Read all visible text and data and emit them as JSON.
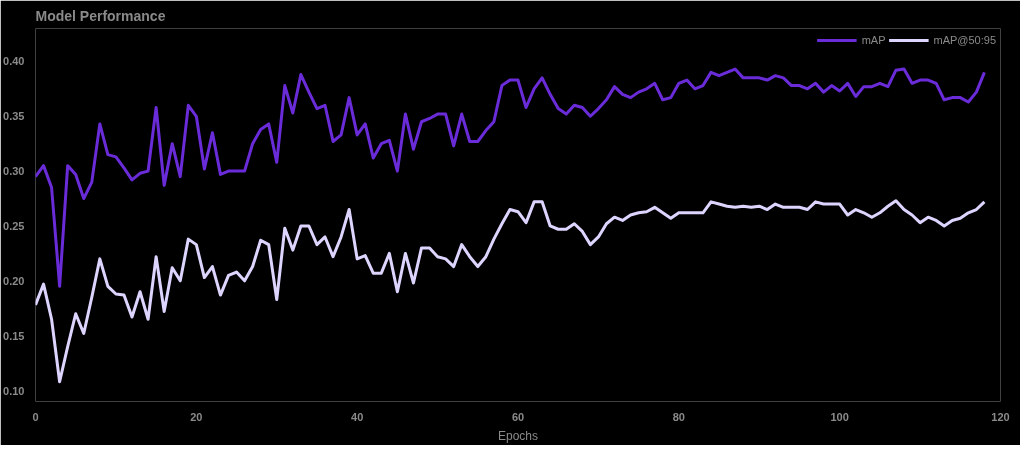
{
  "chart_data": {
    "type": "line",
    "title": "Model Performance",
    "xlabel": "Epochs",
    "x": [
      0,
      1,
      2,
      3,
      4,
      5,
      6,
      7,
      8,
      9,
      10,
      11,
      12,
      13,
      14,
      15,
      16,
      17,
      18,
      19,
      20,
      21,
      22,
      23,
      24,
      25,
      26,
      27,
      28,
      29,
      30,
      31,
      32,
      33,
      34,
      35,
      36,
      37,
      38,
      39,
      40,
      41,
      42,
      43,
      44,
      45,
      46,
      47,
      48,
      49,
      50,
      51,
      52,
      53,
      54,
      55,
      56,
      57,
      58,
      59,
      60,
      61,
      62,
      63,
      64,
      65,
      66,
      67,
      68,
      69,
      70,
      71,
      72,
      73,
      74,
      75,
      76,
      77,
      78,
      79,
      80,
      81,
      82,
      83,
      84,
      85,
      86,
      87,
      88,
      89,
      90,
      91,
      92,
      93,
      94,
      95,
      96,
      97,
      98,
      99,
      100,
      101,
      102,
      103,
      104,
      105,
      106,
      107,
      108,
      109,
      110,
      111,
      112,
      113,
      114,
      115,
      116,
      117,
      118
    ],
    "series": [
      {
        "name": "mAP",
        "color": "#6a2bd9",
        "values": [
          0.295,
          0.305,
          0.285,
          0.195,
          0.305,
          0.297,
          0.275,
          0.29,
          0.343,
          0.315,
          0.313,
          0.303,
          0.292,
          0.298,
          0.3,
          0.358,
          0.287,
          0.325,
          0.295,
          0.36,
          0.35,
          0.302,
          0.335,
          0.297,
          0.3,
          0.3,
          0.3,
          0.325,
          0.338,
          0.343,
          0.308,
          0.378,
          0.353,
          0.388,
          0.372,
          0.357,
          0.36,
          0.327,
          0.333,
          0.367,
          0.333,
          0.343,
          0.312,
          0.325,
          0.328,
          0.3,
          0.352,
          0.32,
          0.345,
          0.348,
          0.352,
          0.352,
          0.323,
          0.352,
          0.327,
          0.327,
          0.337,
          0.345,
          0.378,
          0.383,
          0.383,
          0.358,
          0.375,
          0.385,
          0.37,
          0.357,
          0.352,
          0.36,
          0.358,
          0.35,
          0.357,
          0.365,
          0.377,
          0.37,
          0.367,
          0.372,
          0.375,
          0.38,
          0.365,
          0.367,
          0.38,
          0.383,
          0.375,
          0.378,
          0.39,
          0.387,
          0.39,
          0.393,
          0.385,
          0.385,
          0.385,
          0.383,
          0.387,
          0.385,
          0.378,
          0.378,
          0.375,
          0.38,
          0.372,
          0.378,
          0.373,
          0.38,
          0.368,
          0.377,
          0.377,
          0.38,
          0.377,
          0.392,
          0.393,
          0.38,
          0.383,
          0.383,
          0.38,
          0.365,
          0.367,
          0.367,
          0.363,
          0.372,
          0.39
        ]
      },
      {
        "name": "mAP@50:95",
        "color": "#ddd5ff",
        "values": [
          0.178,
          0.197,
          0.165,
          0.108,
          0.14,
          0.17,
          0.152,
          0.185,
          0.22,
          0.195,
          0.188,
          0.187,
          0.167,
          0.19,
          0.165,
          0.222,
          0.172,
          0.212,
          0.2,
          0.238,
          0.233,
          0.203,
          0.213,
          0.187,
          0.205,
          0.208,
          0.2,
          0.213,
          0.237,
          0.233,
          0.183,
          0.248,
          0.228,
          0.25,
          0.25,
          0.233,
          0.24,
          0.222,
          0.24,
          0.265,
          0.22,
          0.223,
          0.207,
          0.207,
          0.225,
          0.19,
          0.225,
          0.198,
          0.23,
          0.23,
          0.222,
          0.22,
          0.213,
          0.233,
          0.222,
          0.213,
          0.222,
          0.238,
          0.252,
          0.265,
          0.263,
          0.253,
          0.272,
          0.272,
          0.25,
          0.247,
          0.247,
          0.252,
          0.245,
          0.233,
          0.24,
          0.252,
          0.258,
          0.255,
          0.26,
          0.262,
          0.263,
          0.267,
          0.262,
          0.257,
          0.262,
          0.262,
          0.262,
          0.262,
          0.272,
          0.27,
          0.268,
          0.267,
          0.268,
          0.267,
          0.268,
          0.265,
          0.27,
          0.267,
          0.267,
          0.267,
          0.265,
          0.272,
          0.27,
          0.27,
          0.27,
          0.26,
          0.265,
          0.262,
          0.258,
          0.262,
          0.268,
          0.273,
          0.265,
          0.26,
          0.253,
          0.258,
          0.255,
          0.25,
          0.255,
          0.257,
          0.262,
          0.265,
          0.272
        ]
      }
    ],
    "xlim": [
      0,
      120
    ],
    "xticks": [
      0,
      20,
      40,
      60,
      80,
      100,
      120
    ],
    "ylim": [
      0.09,
      0.43
    ],
    "yticks": [
      {
        "value": 0.1,
        "label": "0.10"
      },
      {
        "value": 0.15,
        "label": "0.15"
      },
      {
        "value": 0.2,
        "label": "0.20"
      },
      {
        "value": 0.25,
        "label": "0.25"
      },
      {
        "value": 0.3,
        "label": "0.30"
      },
      {
        "value": 0.35,
        "label": "0.35"
      },
      {
        "value": 0.4,
        "label": "0.40"
      }
    ],
    "grid": false,
    "legend": "top right",
    "marker": "none",
    "line_style": "solid"
  }
}
